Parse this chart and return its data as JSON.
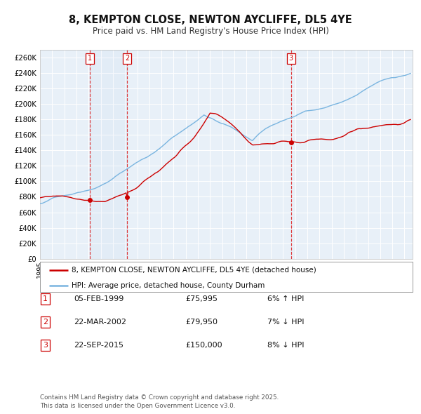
{
  "title": "8, KEMPTON CLOSE, NEWTON AYCLIFFE, DL5 4YE",
  "subtitle": "Price paid vs. HM Land Registry's House Price Index (HPI)",
  "ylim": [
    0,
    270000
  ],
  "yticks": [
    0,
    20000,
    40000,
    60000,
    80000,
    100000,
    120000,
    140000,
    160000,
    180000,
    200000,
    220000,
    240000,
    260000
  ],
  "ytick_labels": [
    "£0",
    "£20K",
    "£40K",
    "£60K",
    "£80K",
    "£100K",
    "£120K",
    "£140K",
    "£160K",
    "£180K",
    "£200K",
    "£220K",
    "£240K",
    "£260K"
  ],
  "hpi_color": "#7ab5e0",
  "property_color": "#cc0000",
  "background_color": "#ffffff",
  "plot_bg_color": "#e8f0f8",
  "grid_color": "#ffffff",
  "sale1_date": "05-FEB-1999",
  "sale1_price": 75995,
  "sale1_label": "£75,995",
  "sale1_pct": "6%",
  "sale1_dir": "↑",
  "sale2_date": "22-MAR-2002",
  "sale2_price": 79950,
  "sale2_label": "£79,950",
  "sale2_pct": "7%",
  "sale2_dir": "↓",
  "sale3_date": "22-SEP-2015",
  "sale3_price": 150000,
  "sale3_label": "£150,000",
  "sale3_pct": "8%",
  "sale3_dir": "↓",
  "legend_property": "8, KEMPTON CLOSE, NEWTON AYCLIFFE, DL5 4YE (detached house)",
  "legend_hpi": "HPI: Average price, detached house, County Durham",
  "footer": "Contains HM Land Registry data © Crown copyright and database right 2025.\nThis data is licensed under the Open Government Licence v3.0."
}
